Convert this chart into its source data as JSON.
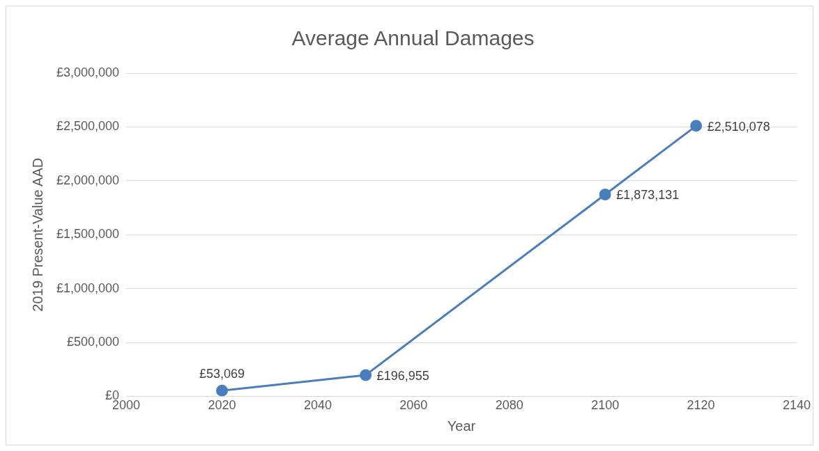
{
  "chart_data": {
    "type": "line",
    "title": "Average Annual Damages",
    "xlabel": "Year",
    "ylabel": "2019 Present-Value AAD",
    "x": [
      2020,
      2050,
      2100,
      2119
    ],
    "series": [
      {
        "color": "#4a7ebb",
        "values": [
          53069,
          196955,
          1873131,
          2510078
        ],
        "value_labels": [
          "£53,069",
          "£196,955",
          "£1,873,131",
          "£2,510,078"
        ]
      }
    ],
    "xlim": [
      2000,
      2140
    ],
    "xticks": [
      2000,
      2020,
      2040,
      2060,
      2080,
      2100,
      2120,
      2140
    ],
    "ylim": [
      0,
      3000000
    ],
    "yticks": [
      {
        "value": 0,
        "label": "£0"
      },
      {
        "value": 500000,
        "label": "£500,000"
      },
      {
        "value": 1000000,
        "label": "£1,000,000"
      },
      {
        "value": 1500000,
        "label": "£1,500,000"
      },
      {
        "value": 2000000,
        "label": "£2,000,000"
      },
      {
        "value": 2500000,
        "label": "£2,500,000"
      },
      {
        "value": 3000000,
        "label": "£3,000,000"
      }
    ],
    "grid": "y",
    "legend": false,
    "marker": "circle",
    "line_style": "solid"
  }
}
